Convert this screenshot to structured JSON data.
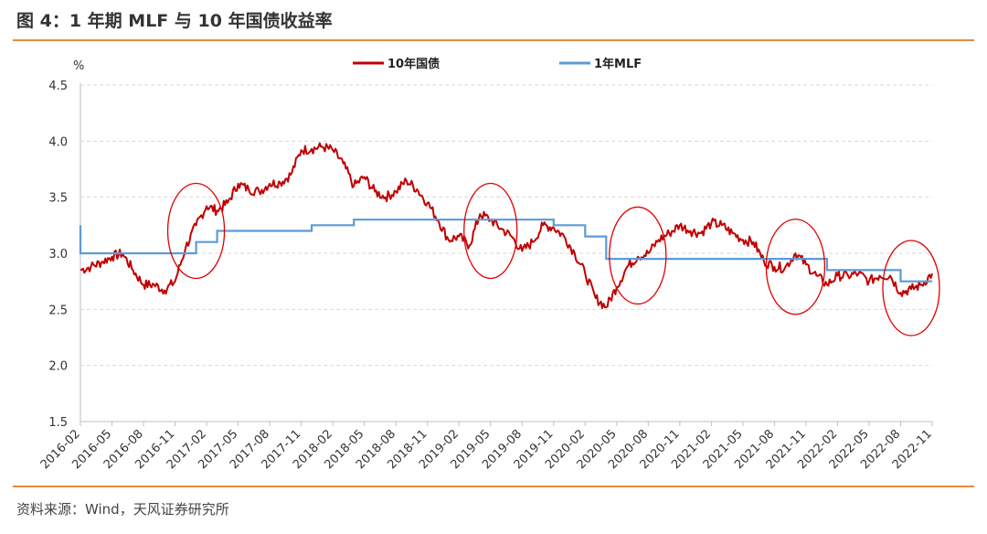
{
  "figure": {
    "title": "图 4：1 年期 MLF 与 10 年国债收益率",
    "source": "资料来源：Wind，天风证券研究所"
  },
  "colors": {
    "accent_rule": "#E8893A",
    "bond_series": "#C00000",
    "mlf_series": "#5B9BD5",
    "annotation": "#E00000",
    "grid": "#D9D9D9"
  },
  "chart_data": {
    "type": "line",
    "y_unit_label": "%",
    "ylim": [
      1.5,
      4.5
    ],
    "y_ticks": [
      "4.5",
      "4.0",
      "3.5",
      "3.0",
      "2.5",
      "2.0",
      "1.5"
    ],
    "x_range": [
      "2016-02",
      "2022-11"
    ],
    "x_ticks": [
      "2016-02",
      "2016-05",
      "2016-08",
      "2016-11",
      "2017-02",
      "2017-05",
      "2017-08",
      "2017-11",
      "2018-02",
      "2018-05",
      "2018-08",
      "2018-11",
      "2019-02",
      "2019-05",
      "2019-08",
      "2019-11",
      "2020-02",
      "2020-05",
      "2020-08",
      "2020-11",
      "2021-02",
      "2021-05",
      "2021-08",
      "2021-11",
      "2022-02",
      "2022-05",
      "2022-08",
      "2022-11"
    ],
    "grid": "horizontal dashed",
    "legend_position": "top",
    "series": [
      {
        "name": "10年国债",
        "style": "line",
        "points": [
          [
            "2016-02",
            2.85
          ],
          [
            "2016-03",
            2.88
          ],
          [
            "2016-04",
            2.92
          ],
          [
            "2016-05",
            2.97
          ],
          [
            "2016-06",
            3.0
          ],
          [
            "2016-07",
            2.85
          ],
          [
            "2016-08",
            2.72
          ],
          [
            "2016-09",
            2.72
          ],
          [
            "2016-10",
            2.67
          ],
          [
            "2016-11",
            2.75
          ],
          [
            "2016-12",
            3.05
          ],
          [
            "2017-01",
            3.25
          ],
          [
            "2017-02",
            3.42
          ],
          [
            "2017-03",
            3.38
          ],
          [
            "2017-04",
            3.45
          ],
          [
            "2017-05",
            3.62
          ],
          [
            "2017-06",
            3.57
          ],
          [
            "2017-07",
            3.55
          ],
          [
            "2017-08",
            3.62
          ],
          [
            "2017-09",
            3.63
          ],
          [
            "2017-10",
            3.7
          ],
          [
            "2017-11",
            3.92
          ],
          [
            "2017-12",
            3.93
          ],
          [
            "2018-01",
            3.95
          ],
          [
            "2018-02",
            3.92
          ],
          [
            "2018-03",
            3.8
          ],
          [
            "2018-04",
            3.6
          ],
          [
            "2018-05",
            3.68
          ],
          [
            "2018-06",
            3.55
          ],
          [
            "2018-07",
            3.5
          ],
          [
            "2018-08",
            3.55
          ],
          [
            "2018-09",
            3.65
          ],
          [
            "2018-10",
            3.57
          ],
          [
            "2018-11",
            3.45
          ],
          [
            "2018-12",
            3.3
          ],
          [
            "2019-01",
            3.12
          ],
          [
            "2019-02",
            3.15
          ],
          [
            "2019-03",
            3.07
          ],
          [
            "2019-04",
            3.35
          ],
          [
            "2019-05",
            3.3
          ],
          [
            "2019-06",
            3.22
          ],
          [
            "2019-07",
            3.15
          ],
          [
            "2019-08",
            3.02
          ],
          [
            "2019-09",
            3.1
          ],
          [
            "2019-10",
            3.25
          ],
          [
            "2019-11",
            3.23
          ],
          [
            "2019-12",
            3.15
          ],
          [
            "2020-01",
            3.0
          ],
          [
            "2020-02",
            2.82
          ],
          [
            "2020-03",
            2.6
          ],
          [
            "2020-04",
            2.52
          ],
          [
            "2020-05",
            2.7
          ],
          [
            "2020-06",
            2.88
          ],
          [
            "2020-07",
            2.97
          ],
          [
            "2020-08",
            3.0
          ],
          [
            "2020-09",
            3.12
          ],
          [
            "2020-10",
            3.18
          ],
          [
            "2020-11",
            3.25
          ],
          [
            "2020-12",
            3.2
          ],
          [
            "2021-01",
            3.18
          ],
          [
            "2021-02",
            3.27
          ],
          [
            "2021-03",
            3.25
          ],
          [
            "2021-04",
            3.18
          ],
          [
            "2021-05",
            3.12
          ],
          [
            "2021-06",
            3.1
          ],
          [
            "2021-07",
            2.93
          ],
          [
            "2021-08",
            2.88
          ],
          [
            "2021-09",
            2.87
          ],
          [
            "2021-10",
            3.0
          ],
          [
            "2021-11",
            2.9
          ],
          [
            "2021-12",
            2.8
          ],
          [
            "2022-01",
            2.72
          ],
          [
            "2022-02",
            2.8
          ],
          [
            "2022-03",
            2.8
          ],
          [
            "2022-04",
            2.82
          ],
          [
            "2022-05",
            2.75
          ],
          [
            "2022-06",
            2.8
          ],
          [
            "2022-07",
            2.8
          ],
          [
            "2022-08",
            2.65
          ],
          [
            "2022-09",
            2.68
          ],
          [
            "2022-10",
            2.72
          ],
          [
            "2022-11",
            2.82
          ]
        ]
      },
      {
        "name": "1年MLF",
        "style": "step",
        "points": [
          [
            "2016-02",
            3.25
          ],
          [
            "2016-02",
            3.0
          ],
          [
            "2017-01",
            3.1
          ],
          [
            "2017-03",
            3.2
          ],
          [
            "2017-12",
            3.25
          ],
          [
            "2018-04",
            3.3
          ],
          [
            "2019-11",
            3.25
          ],
          [
            "2020-02",
            3.15
          ],
          [
            "2020-04",
            2.95
          ],
          [
            "2022-01",
            2.85
          ],
          [
            "2022-08",
            2.75
          ],
          [
            "2022-11",
            2.75
          ]
        ]
      }
    ],
    "annotations": [
      {
        "type": "ellipse",
        "center": [
          "2017-01",
          3.2
        ]
      },
      {
        "type": "ellipse",
        "center": [
          "2019-05",
          3.2
        ]
      },
      {
        "type": "ellipse",
        "center": [
          "2020-07",
          2.98
        ]
      },
      {
        "type": "ellipse",
        "center": [
          "2021-10",
          2.88
        ]
      },
      {
        "type": "ellipse",
        "center": [
          "2022-09",
          2.69
        ]
      }
    ]
  }
}
